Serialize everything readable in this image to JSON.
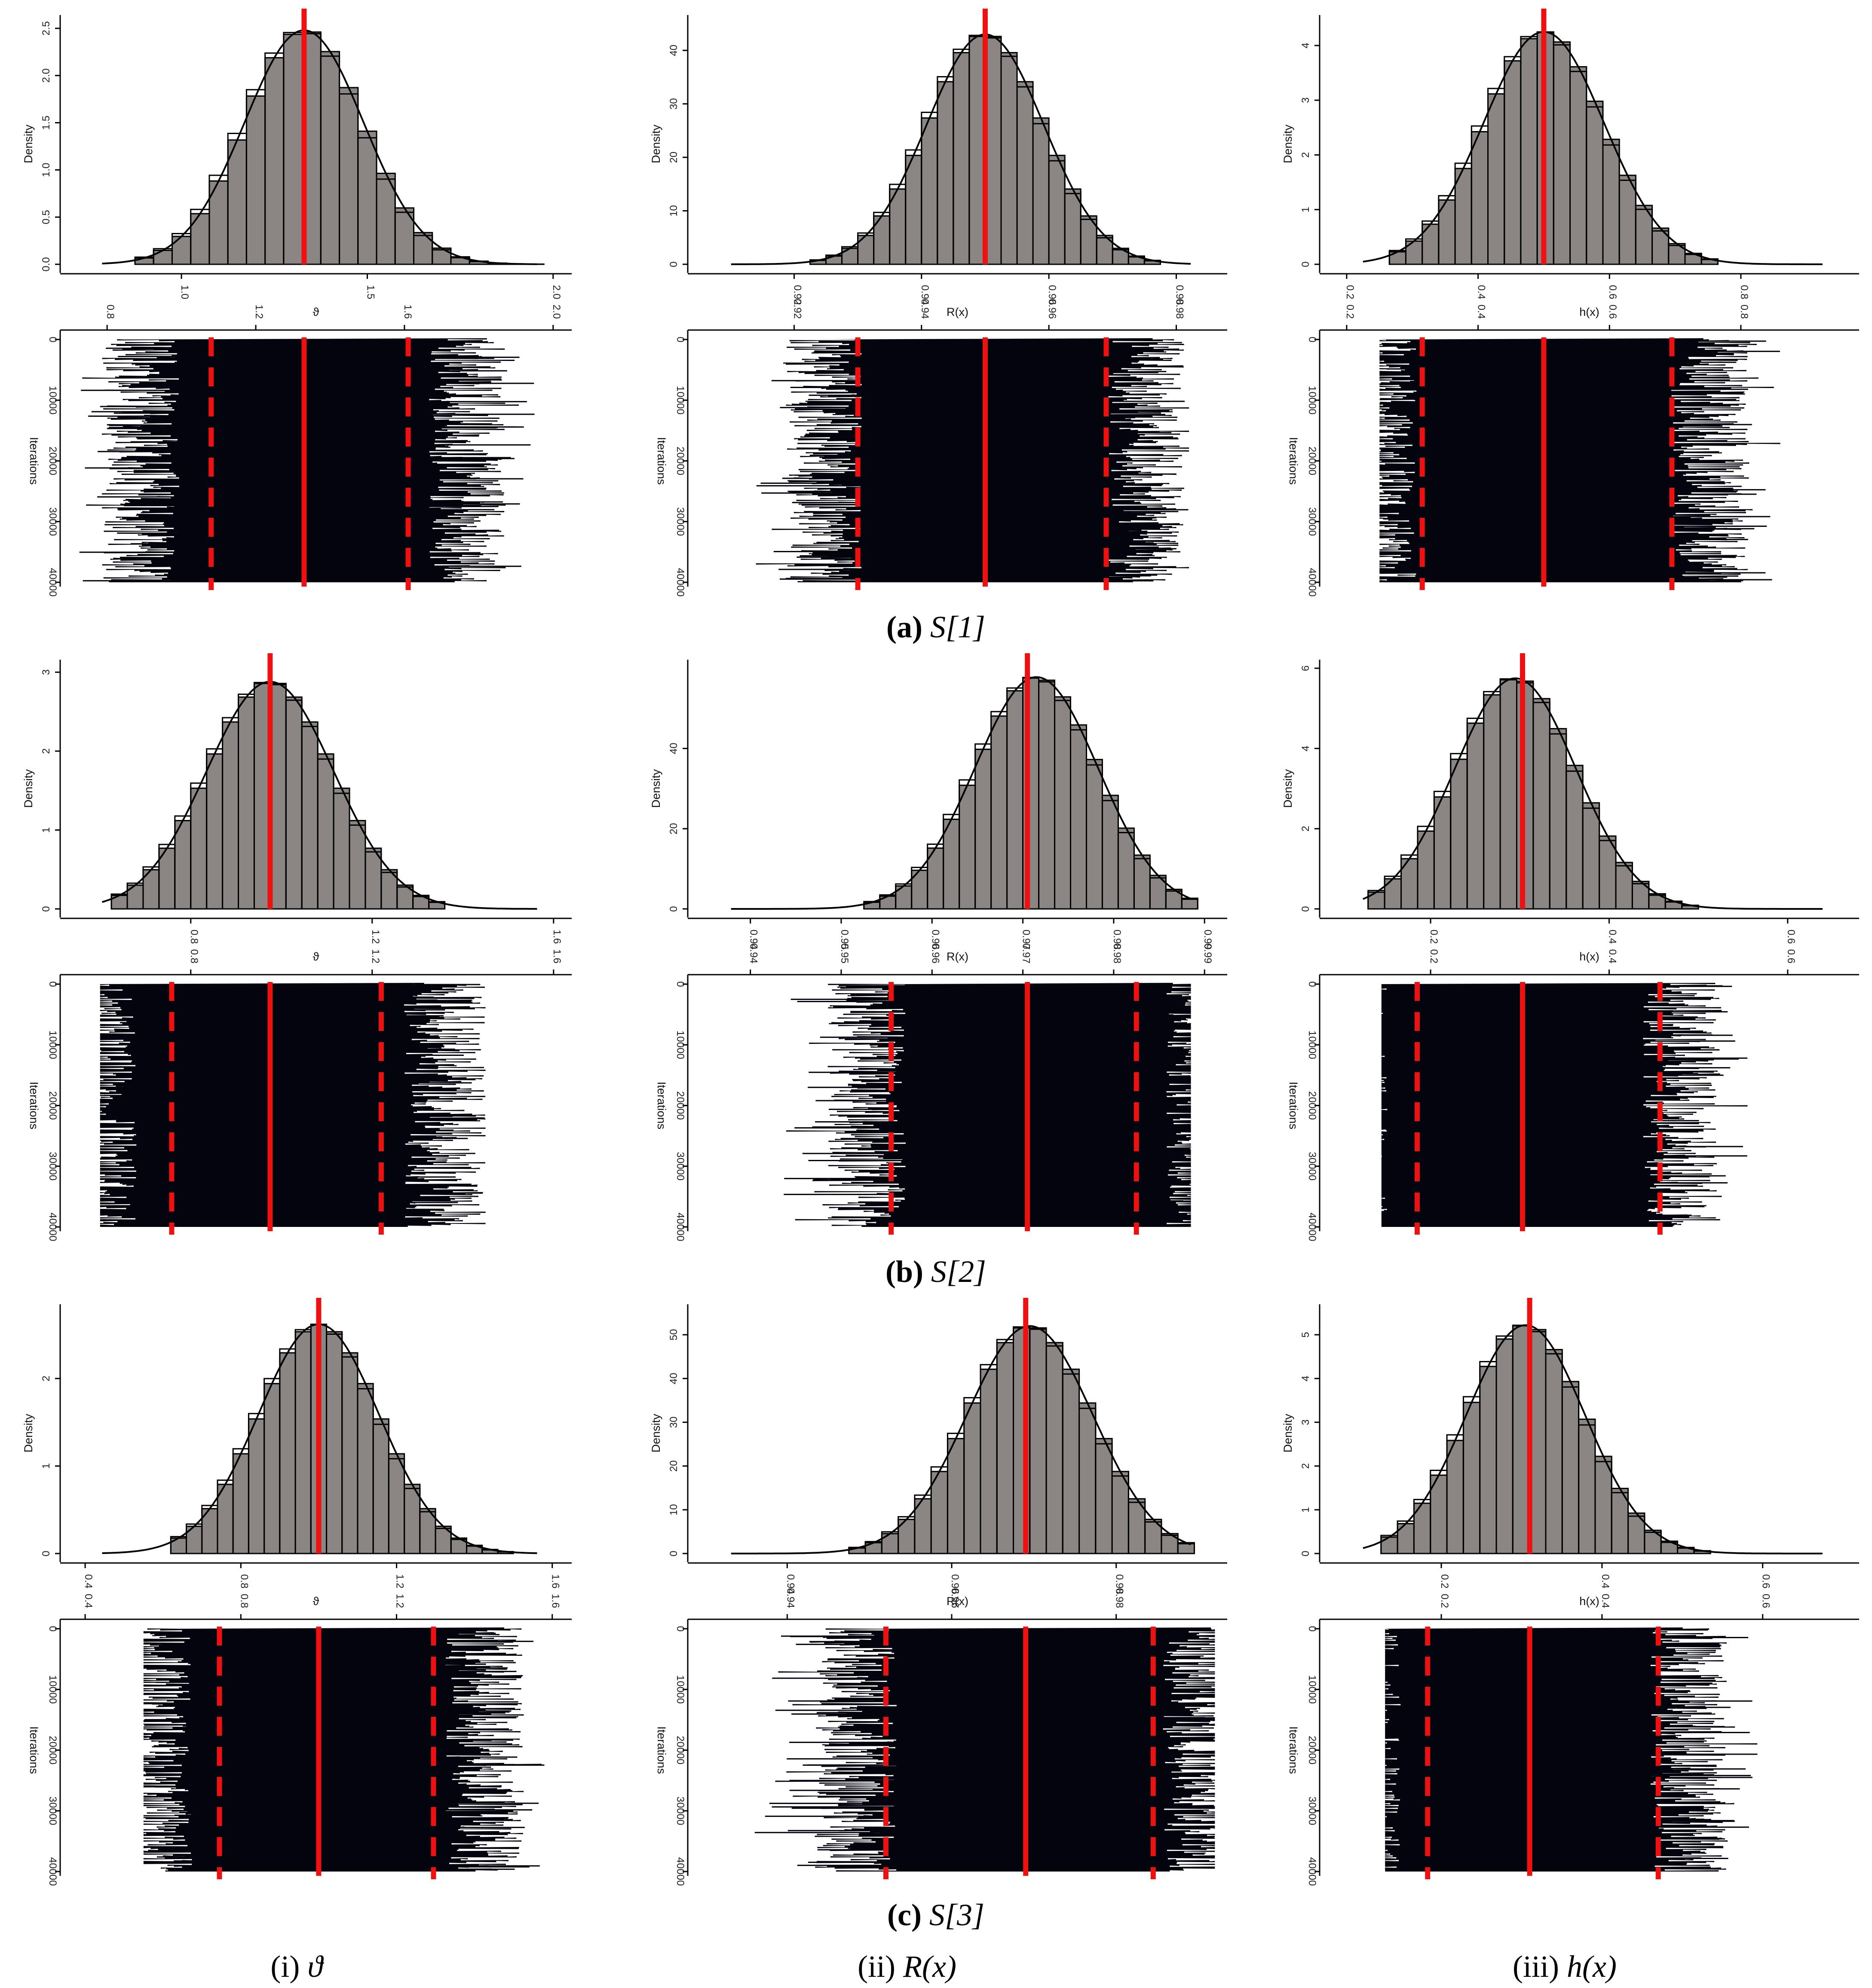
{
  "columns": [
    {
      "key": "theta",
      "label_prefix": "(i)",
      "symbol": "ϑ"
    },
    {
      "key": "reliability",
      "label_prefix": "(ii)",
      "symbol": "R(x)"
    },
    {
      "key": "hazard",
      "label_prefix": "(iii)",
      "symbol": "h(x)"
    }
  ],
  "rows": [
    {
      "caption_letter": "a",
      "caption_text": "S[1]"
    },
    {
      "caption_letter": "b",
      "caption_text": "S[2]"
    },
    {
      "caption_letter": "c",
      "caption_text": "S[3]"
    }
  ],
  "chart_data": [
    {
      "type": "bar",
      "panel": "a-theta-histogram",
      "xlabel": "ϑ",
      "ylabel": "Density",
      "xlim": [
        0.72,
        2.05
      ],
      "ylim": [
        0,
        2.55
      ],
      "xticks": [
        1.0,
        1.5,
        2.0
      ],
      "xtick_labels": [
        "1.0",
        "1.5",
        "2.0"
      ],
      "yticks": [
        0,
        0.5,
        1.0,
        1.5,
        2.0,
        2.5
      ],
      "ytick_labels": [
        "0.0",
        "0.5",
        "1.0",
        "1.5",
        "2.0",
        "2.5"
      ],
      "dist": {
        "mean": 1.33,
        "sd": 0.16,
        "peak": 2.48
      },
      "bins": {
        "start": 0.875,
        "width": 0.05,
        "count": 22
      },
      "estimate": 1.33
    },
    {
      "type": "line",
      "panel": "a-theta-trace",
      "xlabel": "",
      "ylabel": "Iterations",
      "xlim": [
        0.72,
        2.05
      ],
      "ylim": [
        0,
        40000
      ],
      "xticks": [
        0.8,
        1.2,
        1.6,
        2.0
      ],
      "xtick_labels": [
        "0.8",
        "1.2",
        "1.6",
        "2.0"
      ],
      "yticks": [
        0,
        10000,
        20000,
        30000,
        40000
      ],
      "ytick_labels": [
        "0",
        "10000",
        "20000",
        "30000",
        "40000"
      ],
      "estimate": 1.33,
      "ci": [
        1.08,
        1.61
      ],
      "trace_range": [
        0.72,
        1.95
      ]
    },
    {
      "type": "bar",
      "panel": "a-reliability-histogram",
      "xlabel": "R(x)",
      "ylabel": "Density",
      "xlim": [
        0.906,
        0.988
      ],
      "ylim": [
        0,
        45
      ],
      "xticks": [
        0.92,
        0.94,
        0.96,
        0.98
      ],
      "xtick_labels": [
        "0.92",
        "0.94",
        "0.96",
        "0.98"
      ],
      "yticks": [
        0,
        10,
        20,
        30,
        40
      ],
      "ytick_labels": [
        "0",
        "10",
        "20",
        "30",
        "40"
      ],
      "dist": {
        "mean": 0.95,
        "sd": 0.0092,
        "peak": 43.0
      },
      "bins": {
        "start": 0.9225,
        "width": 0.0025,
        "count": 22
      },
      "estimate": 0.95
    },
    {
      "type": "line",
      "panel": "a-reliability-trace",
      "xlabel": "",
      "ylabel": "Iterations",
      "xlim": [
        0.906,
        0.988
      ],
      "ylim": [
        0,
        40000
      ],
      "xticks": [
        0.92,
        0.94,
        0.96,
        0.98
      ],
      "xtick_labels": [
        "0.92",
        "0.94",
        "0.96",
        "0.98"
      ],
      "yticks": [
        0,
        10000,
        20000,
        30000,
        40000
      ],
      "ytick_labels": [
        "0",
        "10000",
        "20000",
        "30000",
        "40000"
      ],
      "estimate": 0.95,
      "ci": [
        0.93,
        0.969
      ],
      "trace_range": [
        0.914,
        0.982
      ]
    },
    {
      "type": "bar",
      "panel": "a-hazard-histogram",
      "xlabel": "h(x)",
      "ylabel": "Density",
      "xlim": [
        0.185,
        0.98
      ],
      "ylim": [
        0,
        4.4
      ],
      "xticks": [
        0.2,
        0.4,
        0.6,
        0.8
      ],
      "xtick_labels": [
        "0.2",
        "0.4",
        "0.6",
        "0.8"
      ],
      "yticks": [
        0,
        1,
        2,
        3,
        4
      ],
      "ytick_labels": [
        "0",
        "1",
        "2",
        "3",
        "4"
      ],
      "dist": {
        "mean": 0.5,
        "sd": 0.092,
        "peak": 4.25
      },
      "bins": {
        "start": 0.265,
        "width": 0.025,
        "count": 20
      },
      "estimate": 0.5
    },
    {
      "type": "line",
      "panel": "a-hazard-trace",
      "xlabel": "",
      "ylabel": "Iterations",
      "xlim": [
        0.185,
        0.98
      ],
      "ylim": [
        0,
        40000
      ],
      "xticks": [
        0.2,
        0.4,
        0.6,
        0.8
      ],
      "xtick_labels": [
        "0.2",
        "0.4",
        "0.6",
        "0.8"
      ],
      "yticks": [
        0,
        10000,
        20000,
        30000,
        40000
      ],
      "ytick_labels": [
        "0",
        "10000",
        "20000",
        "30000",
        "40000"
      ],
      "estimate": 0.5,
      "ci": [
        0.315,
        0.695
      ],
      "trace_range": [
        0.25,
        0.86
      ]
    },
    {
      "type": "bar",
      "panel": "b-theta-histogram",
      "xlabel": "ϑ",
      "ylabel": "Density",
      "xlim": [
        0.55,
        1.64
      ],
      "ylim": [
        0,
        3.05
      ],
      "xticks": [
        0.8,
        1.2,
        1.6
      ],
      "xtick_labels": [
        "0.8",
        "1.2",
        "1.6"
      ],
      "yticks": [
        0,
        1,
        2,
        3
      ],
      "ytick_labels": [
        "0",
        "1",
        "2",
        "3"
      ],
      "dist": {
        "mean": 0.975,
        "sd": 0.14,
        "peak": 2.88
      },
      "bins": {
        "start": 0.625,
        "width": 0.035,
        "count": 21
      },
      "estimate": 0.975
    },
    {
      "type": "line",
      "panel": "b-theta-trace",
      "xlabel": "",
      "ylabel": "Iterations",
      "xlim": [
        0.55,
        1.64
      ],
      "ylim": [
        0,
        40000
      ],
      "xticks": [
        0.8,
        1.2,
        1.6
      ],
      "xtick_labels": [
        "0.8",
        "1.2",
        "1.6"
      ],
      "yticks": [
        0,
        10000,
        20000,
        30000,
        40000
      ],
      "ytick_labels": [
        "0",
        "10000",
        "20000",
        "30000",
        "40000"
      ],
      "estimate": 0.975,
      "ci": [
        0.758,
        1.22
      ],
      "trace_range": [
        0.6,
        1.45
      ]
    },
    {
      "type": "bar",
      "panel": "b-reliability-histogram",
      "xlabel": "R(x)",
      "ylabel": "Density",
      "xlim": [
        0.935,
        0.9925
      ],
      "ylim": [
        0,
        60
      ],
      "xticks": [
        0.94,
        0.95,
        0.96,
        0.97,
        0.98,
        0.99
      ],
      "xtick_labels": [
        "0.94",
        "0.95",
        "0.96",
        "0.97",
        "0.98",
        "0.99"
      ],
      "yticks": [
        0,
        20,
        40
      ],
      "ytick_labels": [
        "0",
        "20",
        "40"
      ],
      "dist": {
        "mean": 0.9715,
        "sd": 0.0068,
        "peak": 57.8
      },
      "bins": {
        "start": 0.9525,
        "width": 0.00175,
        "count": 21
      },
      "estimate": 0.9705
    },
    {
      "type": "line",
      "panel": "b-reliability-trace",
      "xlabel": "",
      "ylabel": "Iterations",
      "xlim": [
        0.935,
        0.9925
      ],
      "ylim": [
        0,
        40000
      ],
      "xticks": [
        0.94,
        0.95,
        0.96,
        0.97,
        0.98,
        0.99
      ],
      "xtick_labels": [
        "0.94",
        "0.95",
        "0.96",
        "0.97",
        "0.98",
        "0.99"
      ],
      "yticks": [
        0,
        10000,
        20000,
        30000,
        40000
      ],
      "ytick_labels": [
        "0",
        "10000",
        "20000",
        "30000",
        "40000"
      ],
      "estimate": 0.9705,
      "ci": [
        0.9555,
        0.9825
      ],
      "trace_range": [
        0.943,
        0.9885
      ]
    },
    {
      "type": "bar",
      "panel": "b-hazard-histogram",
      "xlabel": "h(x)",
      "ylabel": "Density",
      "xlim": [
        0.095,
        0.68
      ],
      "ylim": [
        0,
        6.0
      ],
      "xticks": [
        0.2,
        0.4,
        0.6
      ],
      "xtick_labels": [
        "0.2",
        "0.4",
        "0.6"
      ],
      "yticks": [
        0,
        2,
        4,
        6
      ],
      "ytick_labels": [
        "0",
        "2",
        "4",
        "6"
      ],
      "dist": {
        "mean": 0.295,
        "sd": 0.068,
        "peak": 5.75
      },
      "bins": {
        "start": 0.13,
        "width": 0.0185,
        "count": 20
      },
      "estimate": 0.303
    },
    {
      "type": "line",
      "panel": "b-hazard-trace",
      "xlabel": "",
      "ylabel": "Iterations",
      "xlim": [
        0.095,
        0.68
      ],
      "ylim": [
        0,
        40000
      ],
      "xticks": [
        0.2,
        0.4,
        0.6
      ],
      "xtick_labels": [
        "0.2",
        "0.4",
        "0.6"
      ],
      "yticks": [
        0,
        10000,
        20000,
        30000,
        40000
      ],
      "ytick_labels": [
        "0",
        "10000",
        "20000",
        "30000",
        "40000"
      ],
      "estimate": 0.303,
      "ci": [
        0.185,
        0.457
      ],
      "trace_range": [
        0.145,
        0.555
      ]
    },
    {
      "type": "bar",
      "panel": "c-theta-histogram",
      "xlabel": "ϑ",
      "ylabel": "Density",
      "xlim": [
        0.38,
        1.65
      ],
      "ylim": [
        0,
        2.75
      ],
      "xticks": [
        0.4,
        0.8,
        1.2,
        1.6
      ],
      "xtick_labels": [
        "0.4",
        "0.8",
        "1.2",
        "1.6"
      ],
      "yticks": [
        0,
        1,
        2
      ],
      "ytick_labels": [
        "0",
        "1",
        "2"
      ],
      "dist": {
        "mean": 1.0,
        "sd": 0.155,
        "peak": 2.62
      },
      "bins": {
        "start": 0.62,
        "width": 0.04,
        "count": 22
      },
      "estimate": 1.0
    },
    {
      "type": "line",
      "panel": "c-theta-trace",
      "xlabel": "",
      "ylabel": "Iterations",
      "xlim": [
        0.38,
        1.65
      ],
      "ylim": [
        0,
        40000
      ],
      "xticks": [
        0.4,
        0.8,
        1.2,
        1.6
      ],
      "xtick_labels": [
        "0.4",
        "0.8",
        "1.2",
        "1.6"
      ],
      "yticks": [
        0,
        10000,
        20000,
        30000,
        40000
      ],
      "ytick_labels": [
        "0",
        "10000",
        "20000",
        "30000",
        "40000"
      ],
      "estimate": 1.0,
      "ci": [
        0.745,
        1.295
      ],
      "trace_range": [
        0.55,
        1.58
      ]
    },
    {
      "type": "bar",
      "panel": "c-reliability-histogram",
      "xlabel": "R(x)",
      "ylabel": "Density",
      "xlim": [
        0.93,
        0.9935
      ],
      "ylim": [
        0,
        55
      ],
      "xticks": [
        0.94,
        0.96,
        0.98
      ],
      "xtick_labels": [
        "0.94",
        "0.96",
        "0.98"
      ],
      "yticks": [
        0,
        10,
        20,
        30,
        40,
        50
      ],
      "ytick_labels": [
        "0",
        "10",
        "20",
        "30",
        "40",
        "50"
      ],
      "dist": {
        "mean": 0.9695,
        "sd": 0.0077,
        "peak": 52.0
      },
      "bins": {
        "start": 0.9475,
        "width": 0.002,
        "count": 21
      },
      "estimate": 0.969
    },
    {
      "type": "line",
      "panel": "c-reliability-trace",
      "xlabel": "",
      "ylabel": "Iterations",
      "xlim": [
        0.93,
        0.9935
      ],
      "ylim": [
        0,
        40000
      ],
      "xticks": [
        0.94,
        0.96,
        0.98
      ],
      "xtick_labels": [
        "0.94",
        "0.96",
        "0.98"
      ],
      "yticks": [
        0,
        10000,
        20000,
        30000,
        40000
      ],
      "ytick_labels": [
        "0",
        "10000",
        "20000",
        "30000",
        "40000"
      ],
      "estimate": 0.969,
      "ci": [
        0.952,
        0.9845
      ],
      "trace_range": [
        0.936,
        0.992
      ]
    },
    {
      "type": "bar",
      "panel": "c-hazard-histogram",
      "xlabel": "h(x)",
      "ylabel": "Density",
      "xlim": [
        0.07,
        0.72
      ],
      "ylim": [
        0,
        5.5
      ],
      "xticks": [
        0.2,
        0.4,
        0.6
      ],
      "xtick_labels": [
        "0.2",
        "0.4",
        "0.6"
      ],
      "yticks": [
        0,
        1,
        2,
        3,
        4,
        5
      ],
      "ytick_labels": [
        "0",
        "1",
        "2",
        "3",
        "4",
        "5"
      ],
      "dist": {
        "mean": 0.305,
        "sd": 0.074,
        "peak": 5.22
      },
      "bins": {
        "start": 0.125,
        "width": 0.0205,
        "count": 20
      },
      "estimate": 0.31
    },
    {
      "type": "line",
      "panel": "c-hazard-trace",
      "xlabel": "",
      "ylabel": "Iterations",
      "xlim": [
        0.07,
        0.72
      ],
      "ylim": [
        0,
        40000
      ],
      "xticks": [
        0.2,
        0.4,
        0.6
      ],
      "xtick_labels": [
        "0.2",
        "0.4",
        "0.6"
      ],
      "yticks": [
        0,
        10000,
        20000,
        30000,
        40000
      ],
      "ytick_labels": [
        "0",
        "10000",
        "20000",
        "30000",
        "40000"
      ],
      "estimate": 0.31,
      "ci": [
        0.183,
        0.47
      ],
      "trace_range": [
        0.13,
        0.6
      ]
    }
  ]
}
